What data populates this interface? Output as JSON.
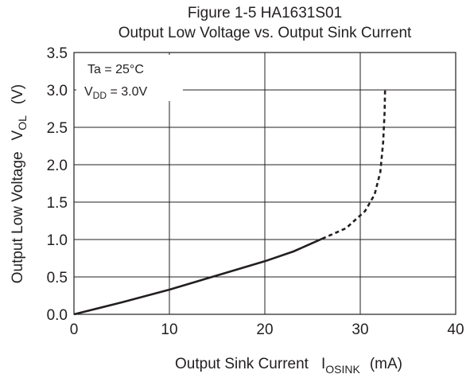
{
  "chart_data": {
    "type": "line",
    "title": "Figure 1-5   HA1631S01",
    "subtitle": "Output Low Voltage vs. Output Sink Current",
    "xlabel": {
      "text": "Output Sink Current",
      "symbol": "I",
      "symbol_sub": "OSINK",
      "unit": "(mA)"
    },
    "ylabel": {
      "text": "Output Low Voltage",
      "symbol": "V",
      "symbol_sub": "OL",
      "unit": "(V)"
    },
    "xlim": [
      0,
      40
    ],
    "ylim": [
      0,
      3.5
    ],
    "x_ticks": [
      0,
      10,
      20,
      30,
      40
    ],
    "x_tick_labels": [
      "0",
      "10",
      "20",
      "30",
      "40"
    ],
    "y_ticks": [
      0,
      0.5,
      1.0,
      1.5,
      2.0,
      2.5,
      3.0,
      3.5
    ],
    "y_tick_labels": [
      "0.0",
      "0.5",
      "1.0",
      "1.5",
      "2.0",
      "2.5",
      "3.0",
      "3.5"
    ],
    "grid": true,
    "conditions": {
      "line1": "Ta = 25°C",
      "line2_symbol": "V",
      "line2_sub": "DD",
      "line2_value": " = 3.0V"
    },
    "series": [
      {
        "style": "solid",
        "color": "#231f20",
        "points": [
          [
            0,
            0
          ],
          [
            5,
            0.16
          ],
          [
            10,
            0.33
          ],
          [
            15,
            0.52
          ],
          [
            20,
            0.71
          ],
          [
            23,
            0.84
          ],
          [
            26,
            1.01
          ]
        ]
      },
      {
        "style": "dashed",
        "color": "#231f20",
        "points": [
          [
            26,
            1.01
          ],
          [
            28.5,
            1.15
          ],
          [
            30.5,
            1.38
          ],
          [
            31.5,
            1.6
          ],
          [
            32.1,
            1.9
          ],
          [
            32.4,
            2.3
          ],
          [
            32.55,
            2.7
          ],
          [
            32.6,
            3.0
          ]
        ]
      }
    ]
  }
}
